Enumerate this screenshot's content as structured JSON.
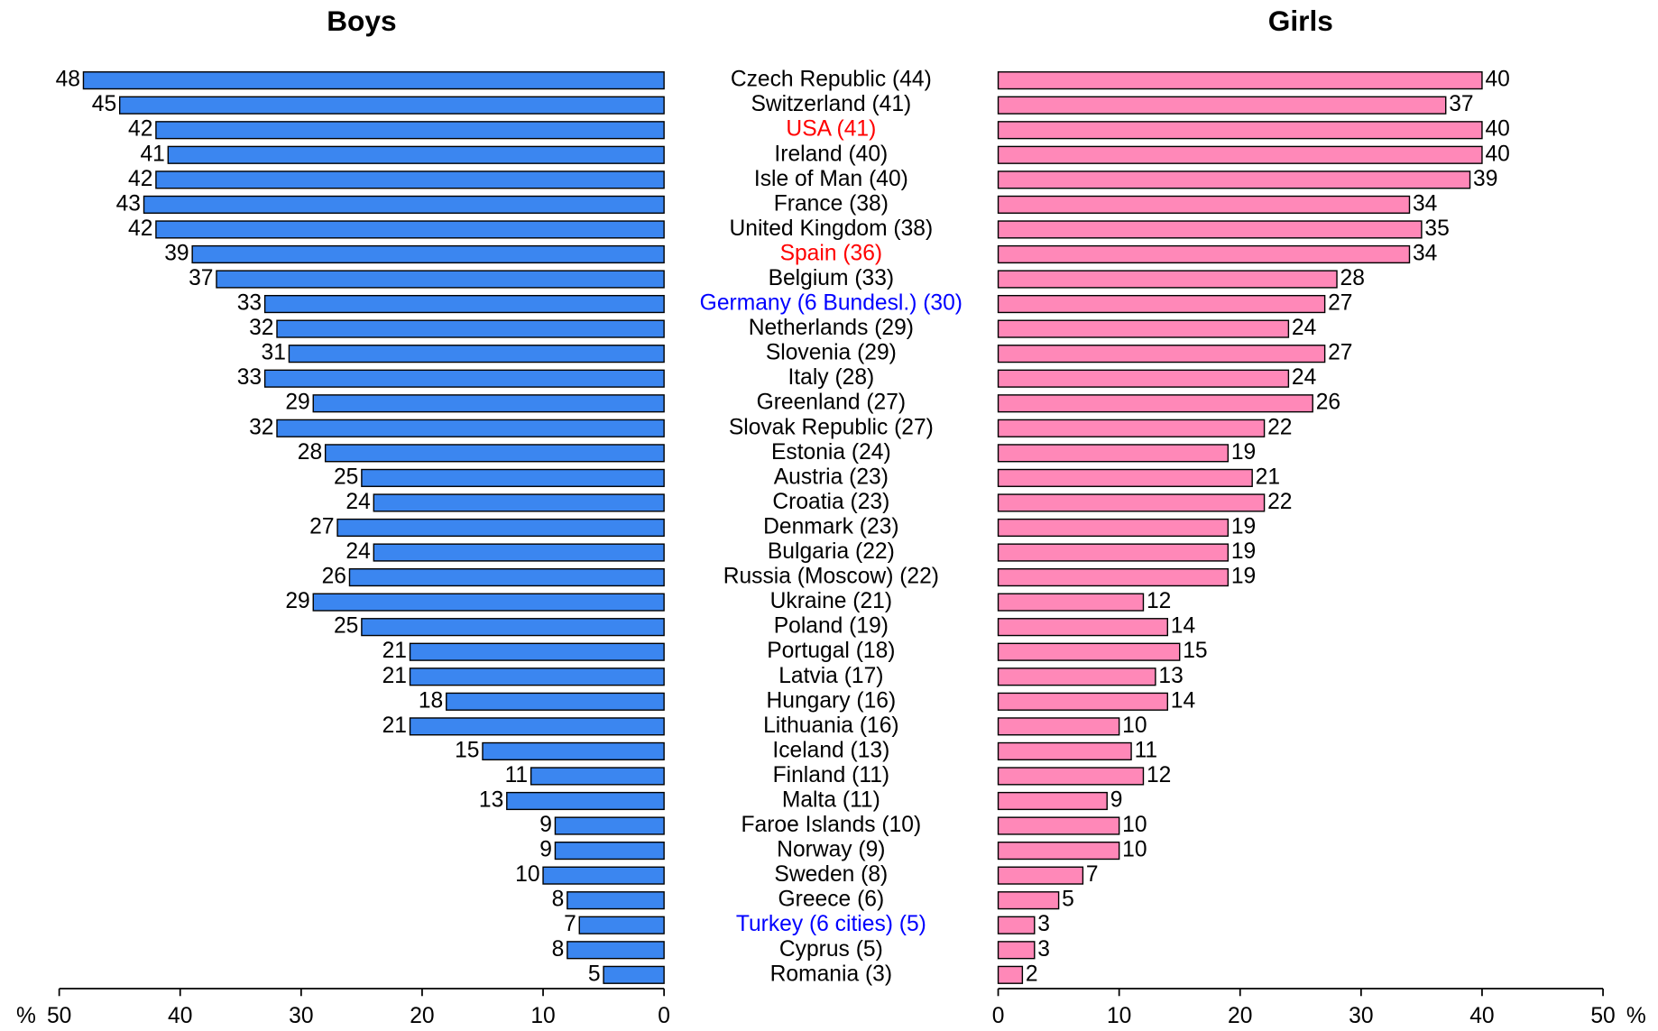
{
  "chart_data": [
    {
      "type": "barh",
      "title": "Boys",
      "direction": "reversed",
      "color": "#3b86f0",
      "xlabel": "%",
      "categories": [
        "Czech Republic (44)",
        "Switzerland (41)",
        "USA (41)",
        "Ireland (40)",
        "Isle of Man (40)",
        "France (38)",
        "United Kingdom (38)",
        "Spain (36)",
        "Belgium (33)",
        "Germany (6 Bundesl.) (30)",
        "Netherlands (29)",
        "Slovenia (29)",
        "Italy (28)",
        "Greenland (27)",
        "Slovak Republic (27)",
        "Estonia (24)",
        "Austria (23)",
        "Croatia (23)",
        "Denmark (23)",
        "Bulgaria (22)",
        "Russia (Moscow) (22)",
        "Ukraine (21)",
        "Poland (19)",
        "Portugal (18)",
        "Latvia (17)",
        "Hungary (16)",
        "Lithuania (16)",
        "Iceland (13)",
        "Finland (11)",
        "Malta (11)",
        "Faroe Islands (10)",
        "Norway (9)",
        "Sweden (8)",
        "Greece (6)",
        "Turkey (6 cities) (5)",
        "Cyprus (5)",
        "Romania (3)"
      ],
      "category_colors": [
        "#000000",
        "#000000",
        "#ff0000",
        "#000000",
        "#000000",
        "#000000",
        "#000000",
        "#ff0000",
        "#000000",
        "#0000ff",
        "#000000",
        "#000000",
        "#000000",
        "#000000",
        "#000000",
        "#000000",
        "#000000",
        "#000000",
        "#000000",
        "#000000",
        "#000000",
        "#000000",
        "#000000",
        "#000000",
        "#000000",
        "#000000",
        "#000000",
        "#000000",
        "#000000",
        "#000000",
        "#000000",
        "#000000",
        "#000000",
        "#000000",
        "#0000ff",
        "#000000",
        "#000000"
      ],
      "values": [
        48,
        45,
        42,
        41,
        42,
        43,
        42,
        39,
        37,
        33,
        32,
        31,
        33,
        29,
        32,
        28,
        25,
        24,
        27,
        24,
        26,
        29,
        25,
        21,
        21,
        18,
        21,
        15,
        11,
        13,
        9,
        9,
        10,
        8,
        7,
        8,
        5
      ],
      "xlim": [
        0,
        50
      ],
      "xticks": [
        0,
        10,
        20,
        30,
        40,
        50
      ]
    },
    {
      "type": "barh",
      "title": "Girls",
      "direction": "normal",
      "color": "#ff88b8",
      "xlabel": "%",
      "values": [
        40,
        37,
        40,
        40,
        39,
        34,
        35,
        34,
        28,
        27,
        24,
        27,
        24,
        26,
        22,
        19,
        21,
        22,
        19,
        19,
        19,
        12,
        14,
        15,
        13,
        14,
        10,
        11,
        12,
        9,
        10,
        10,
        7,
        5,
        3,
        3,
        2
      ],
      "xlim": [
        0,
        50
      ],
      "xticks": [
        0,
        10,
        20,
        30,
        40,
        50
      ]
    }
  ]
}
